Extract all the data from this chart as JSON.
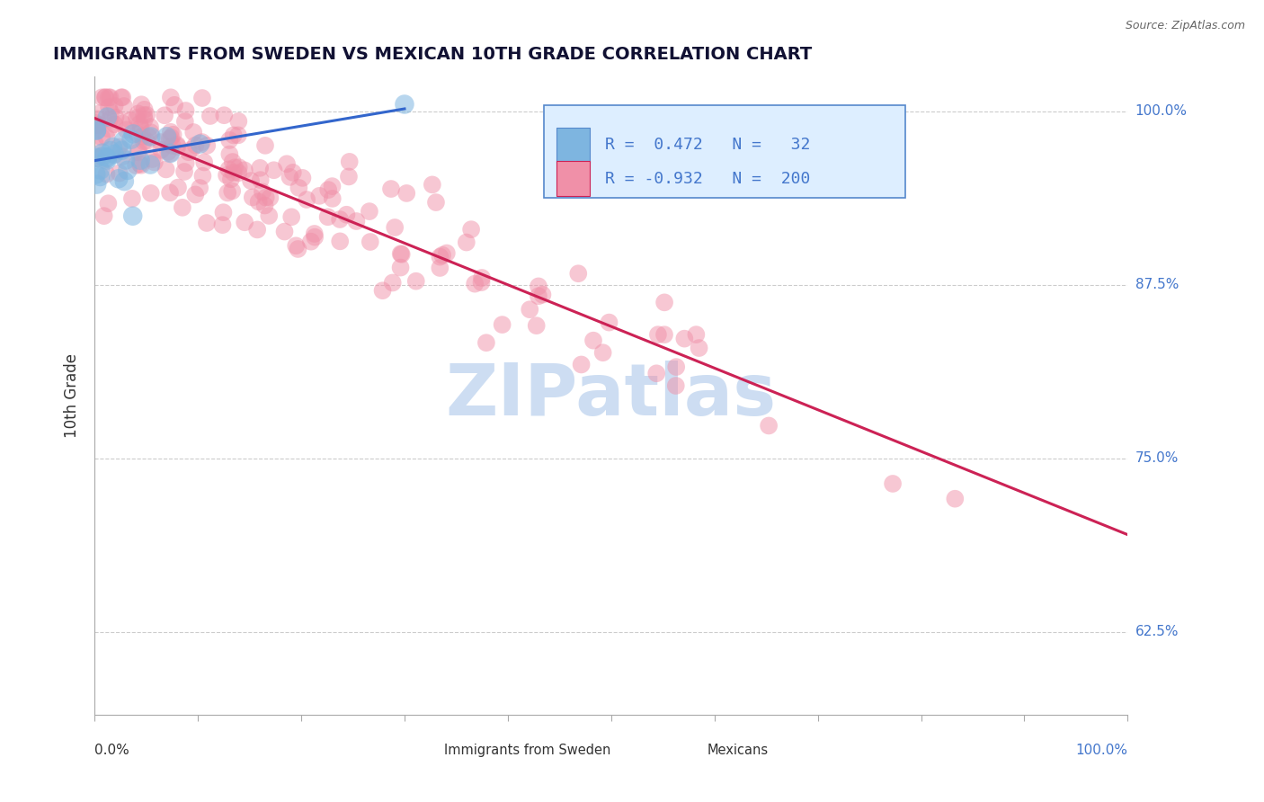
{
  "title": "IMMIGRANTS FROM SWEDEN VS MEXICAN 10TH GRADE CORRELATION CHART",
  "source_text": "Source: ZipAtlas.com",
  "ylabel": "10th Grade",
  "ylabel_ticks": [
    "62.5%",
    "75.0%",
    "87.5%",
    "100.0%"
  ],
  "ylabel_tick_vals": [
    0.625,
    0.75,
    0.875,
    1.0
  ],
  "xlim": [
    0.0,
    1.0
  ],
  "ylim": [
    0.565,
    1.025
  ],
  "watermark": "ZIPatlas",
  "watermark_color": "#c5d8f0",
  "sweden_color": "#7eb5e0",
  "mexico_color": "#f090a8",
  "sweden_line_color": "#3366cc",
  "mexico_line_color": "#cc2255",
  "grid_color": "#cccccc",
  "background_color": "#ffffff",
  "legend_box_color": "#ddeeff",
  "legend_box_edge": "#5588cc",
  "title_color": "#111133",
  "source_color": "#666666",
  "tick_label_color": "#4477cc",
  "axis_label_color": "#333333",
  "sweden_R": 0.472,
  "sweden_N": 32,
  "mexico_R": -0.932,
  "mexico_N": 200,
  "mexico_line_y0": 0.995,
  "mexico_line_y1": 0.695,
  "sweden_line_x0": 0.0,
  "sweden_line_x1": 0.32
}
